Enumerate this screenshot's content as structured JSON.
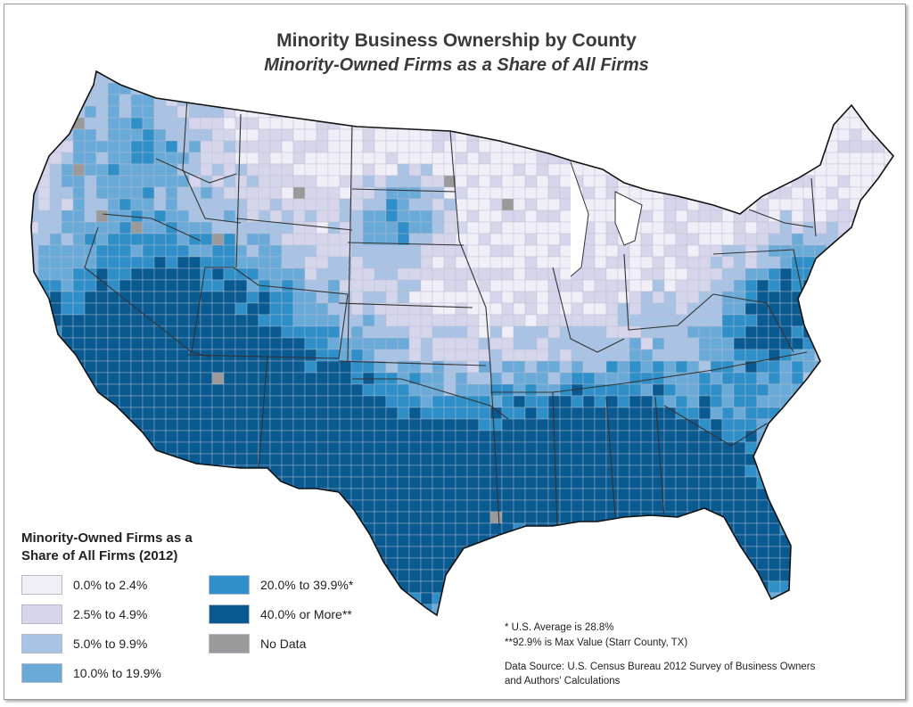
{
  "title": "Minority Business Ownership by County",
  "subtitle": "Minority-Owned Firms as a Share of All Firms",
  "legend": {
    "title_line1": "Minority-Owned Firms as a",
    "title_line2": "Share of All Firms (2012)",
    "items": [
      {
        "label": "0.0% to 2.4%",
        "color": "#f0eff8"
      },
      {
        "label": "2.5% to 4.9%",
        "color": "#d5d6ec"
      },
      {
        "label": "5.0% to 9.9%",
        "color": "#a8c3e4"
      },
      {
        "label": "10.0% to 19.9%",
        "color": "#6aaad8"
      },
      {
        "label": "20.0% to 39.9%*",
        "color": "#2f8fc8"
      },
      {
        "label": "40.0% or More**",
        "color": "#0a5a92"
      },
      {
        "label": "No Data",
        "color": "#9a9a9a"
      }
    ]
  },
  "notes": {
    "average": "*  U.S. Average is 28.8%",
    "max": "**92.9% is Max Value (Starr County, TX)",
    "source_line1": "Data Source: U.S. Census Bureau 2012 Survey of Business Owners",
    "source_line2": "and Authors' Calculations"
  }
}
